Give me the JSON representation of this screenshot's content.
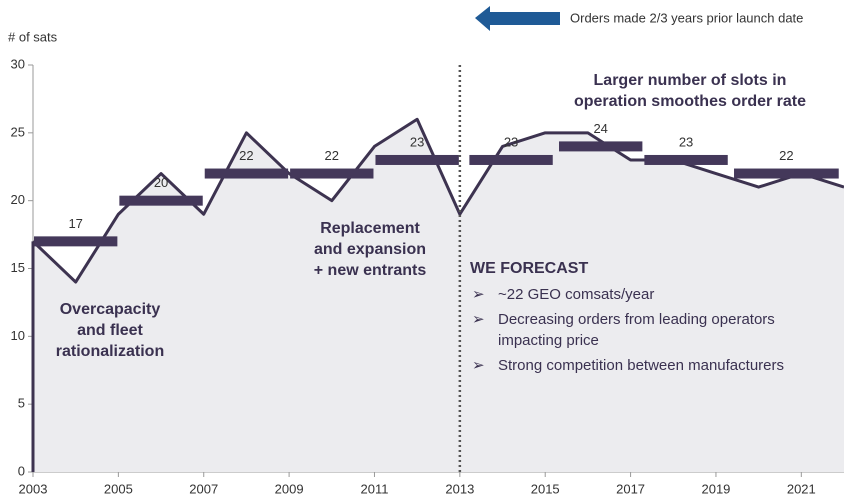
{
  "chart_data": {
    "type": "line",
    "y_axis_label": "# of sats",
    "legend_arrow": "Orders made 2/3 years prior launch date",
    "x": [
      2003,
      2004,
      2005,
      2006,
      2007,
      2008,
      2009,
      2010,
      2011,
      2012,
      2013,
      2014,
      2015,
      2016,
      2017,
      2018,
      2019,
      2020,
      2021,
      2022
    ],
    "series": [
      {
        "color": "#3d3350",
        "fill": "#ececef",
        "values": [
          17,
          14,
          19,
          22,
          19,
          25,
          22,
          20,
          24,
          26,
          19,
          24,
          25,
          25,
          23,
          23,
          22,
          21,
          22,
          21
        ]
      }
    ],
    "averages": {
      "color": "#44385a",
      "periods": [
        [
          2003,
          2005
        ],
        [
          2005,
          2007
        ],
        [
          2007,
          2009
        ],
        [
          2009,
          2011
        ],
        [
          2011,
          2013
        ],
        [
          2013.2,
          2015.2
        ],
        [
          2015.3,
          2017.3
        ],
        [
          2017.3,
          2019.3
        ],
        [
          2019.4,
          2021.9
        ]
      ],
      "values": [
        17,
        20,
        22,
        22,
        23,
        23,
        24,
        23,
        22
      ]
    },
    "forecast_start": 2013,
    "annotations": {
      "early": [
        "Overcapacity",
        "and fleet",
        "rationalization"
      ],
      "middle": [
        "Replacement",
        "and expansion",
        "+ new entrants"
      ],
      "slots": [
        "Larger number of slots in",
        "operation smoothes order rate"
      ],
      "forecast_title": "WE FORECAST",
      "forecast_bullets": [
        "~22 GEO comsats/year",
        "Decreasing orders from leading operators",
        "impacting price",
        "Strong competition between manufacturers"
      ]
    },
    "xlim": [
      2003,
      2022
    ],
    "ylim": [
      0,
      30
    ],
    "xticks": [
      2003,
      2005,
      2007,
      2009,
      2011,
      2013,
      2015,
      2017,
      2019,
      2021
    ],
    "yticks": [
      0,
      5,
      10,
      15,
      20,
      25,
      30
    ]
  }
}
